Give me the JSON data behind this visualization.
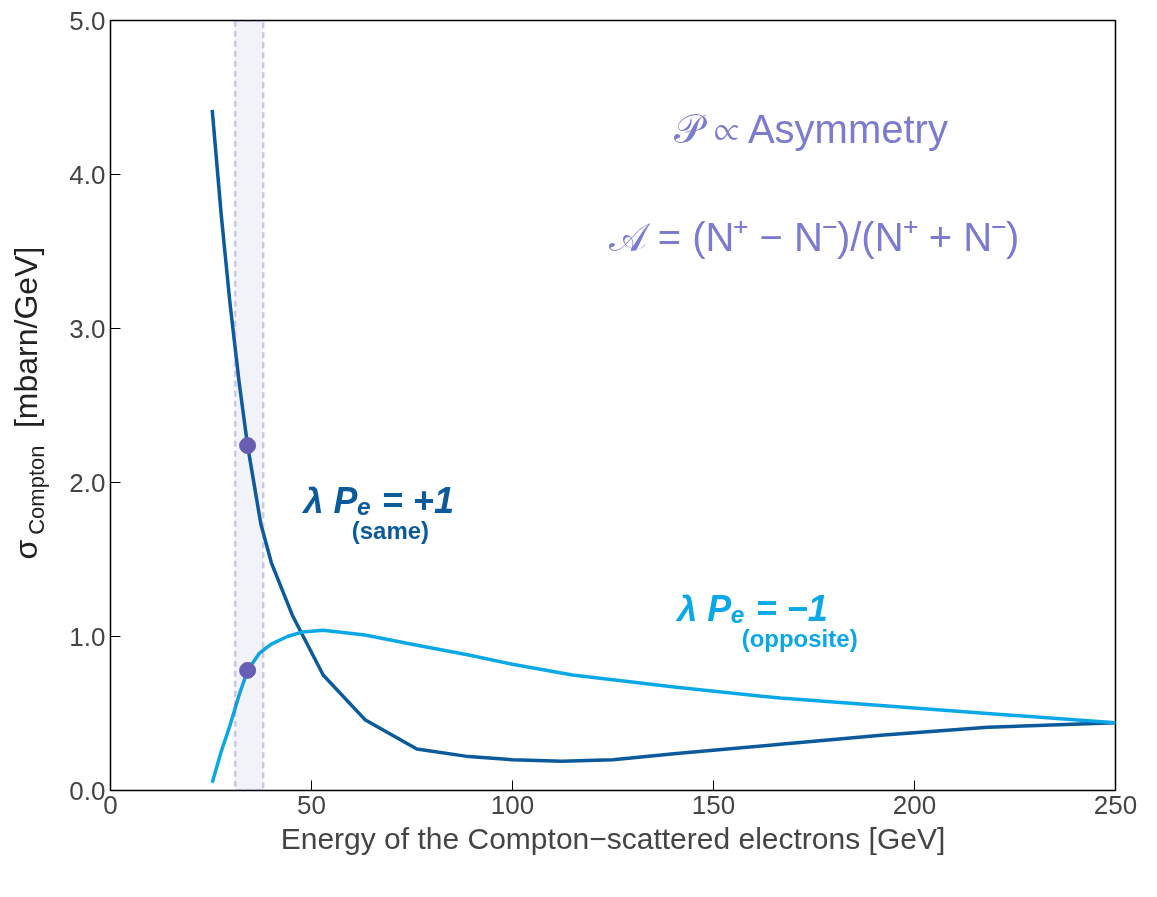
{
  "chart_data": {
    "type": "line",
    "xlabel": "Energy of the Compton−scattered electrons [GeV]",
    "ylabel": "σ$_{Compton}$ [mbarn/GeV]",
    "xlim": [
      0,
      250
    ],
    "ylim": [
      0,
      5.0
    ],
    "xticks": [
      0,
      50,
      100,
      150,
      200,
      250
    ],
    "yticks": [
      {
        "value": 0,
        "label": "0.0"
      },
      {
        "value": 1,
        "label": "1.0"
      },
      {
        "value": 2,
        "label": "2.0"
      },
      {
        "value": 3,
        "label": "3.0"
      },
      {
        "value": 4,
        "label": "4.0"
      },
      {
        "value": 5,
        "label": "5.0"
      }
    ],
    "grid": false,
    "marker": "none",
    "line_style": "solid",
    "series": [
      {
        "name": "λ Pₑ = +1",
        "color": "#0a5a9c",
        "x": [
          25.3,
          27.5,
          29.7,
          32,
          34.1,
          37.4,
          40,
          45.2,
          52.9,
          63.3,
          76.2,
          89.1,
          100,
          112.3,
          125,
          140.8,
          166.6,
          192.4,
          218.2,
          250
        ],
        "values": [
          4.42,
          3.75,
          3.17,
          2.65,
          2.24,
          1.73,
          1.48,
          1.14,
          0.75,
          0.46,
          0.27,
          0.22,
          0.2,
          0.19,
          0.2,
          0.24,
          0.3,
          0.36,
          0.41,
          0.44
        ]
      },
      {
        "name": "λ Pₑ = −1",
        "color": "#0aa8e6",
        "x": [
          25.3,
          27.5,
          29.7,
          32,
          34.1,
          37,
          40,
          44,
          47.8,
          52.9,
          63.3,
          75,
          89.1,
          100,
          114.9,
          140.8,
          166.6,
          192.4,
          218.2,
          250
        ],
        "values": [
          0.05,
          0.25,
          0.42,
          0.62,
          0.78,
          0.89,
          0.95,
          1.0,
          1.03,
          1.04,
          1.01,
          0.95,
          0.88,
          0.82,
          0.75,
          0.67,
          0.6,
          0.55,
          0.5,
          0.44
        ]
      },
      {
        "type": "scatter",
        "marker": "circle",
        "color": "#6a5fb5",
        "x": [
          34.1,
          34.1
        ],
        "values": [
          2.24,
          0.78
        ]
      }
    ],
    "bands": [
      {
        "axis": "x",
        "from": 31,
        "to": 38,
        "color": "#5b5bb0"
      }
    ],
    "annotations": [
      "(same)",
      "(opposite)",
      "𝒫 ∝ Asymmetry",
      "𝒜 = (N⁺ − N⁻)/(N⁺ + N⁻)"
    ]
  }
}
